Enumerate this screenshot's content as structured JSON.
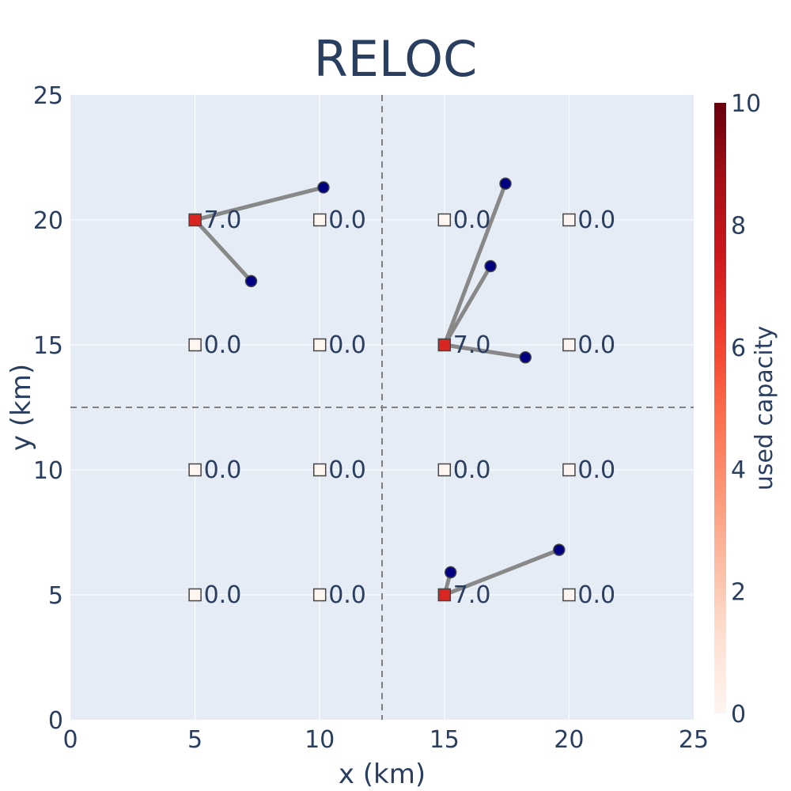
{
  "chart_data": {
    "type": "scatter",
    "title": "RELOC",
    "xlabel": "x (km)",
    "ylabel": "y (km)",
    "xlim": [
      0,
      25
    ],
    "ylim": [
      0,
      25
    ],
    "x_ticks": [
      0,
      5,
      10,
      15,
      20,
      25
    ],
    "y_ticks": [
      0,
      5,
      10,
      15,
      20,
      25
    ],
    "grid": true,
    "divider_lines": {
      "x": 12.5,
      "y": 12.5,
      "style": "dashed"
    },
    "colorbar": {
      "title": "used capacity",
      "range": [
        0,
        10
      ],
      "ticks": [
        0,
        2,
        4,
        6,
        8,
        10
      ],
      "colorscale": "Reds"
    },
    "facilities": [
      {
        "x": 5,
        "y": 20,
        "label": "7.0"
      },
      {
        "x": 10,
        "y": 20,
        "label": "0.0"
      },
      {
        "x": 15,
        "y": 20,
        "label": "0.0"
      },
      {
        "x": 20,
        "y": 20,
        "label": "0.0"
      },
      {
        "x": 5,
        "y": 15,
        "label": "0.0"
      },
      {
        "x": 10,
        "y": 15,
        "label": "0.0"
      },
      {
        "x": 15,
        "y": 15,
        "label": "7.0"
      },
      {
        "x": 20,
        "y": 15,
        "label": "0.0"
      },
      {
        "x": 5,
        "y": 10,
        "label": "0.0"
      },
      {
        "x": 10,
        "y": 10,
        "label": "0.0"
      },
      {
        "x": 15,
        "y": 10,
        "label": "0.0"
      },
      {
        "x": 20,
        "y": 10,
        "label": "0.0"
      },
      {
        "x": 5,
        "y": 5,
        "label": "0.0"
      },
      {
        "x": 10,
        "y": 5,
        "label": "0.0"
      },
      {
        "x": 15,
        "y": 5,
        "label": "7.0"
      },
      {
        "x": 20,
        "y": 5,
        "label": "0.0"
      }
    ],
    "customers": [
      {
        "x": 10.15,
        "y": 21.3,
        "facility": 0
      },
      {
        "x": 7.25,
        "y": 17.55,
        "facility": 0
      },
      {
        "x": 17.45,
        "y": 21.45,
        "facility": 6
      },
      {
        "x": 16.85,
        "y": 18.15,
        "facility": 6
      },
      {
        "x": 18.25,
        "y": 14.5,
        "facility": 6
      },
      {
        "x": 15.25,
        "y": 5.9,
        "facility": 14
      },
      {
        "x": 19.6,
        "y": 6.8,
        "facility": 14
      }
    ],
    "colors": {
      "plot_bg": "#e5ecf6",
      "grid": "#ffffff",
      "assignment_line": "#888888",
      "customer": "#000080",
      "marker_outline": "#444444",
      "divider": "#808080",
      "text": "#2a3f5f"
    }
  }
}
